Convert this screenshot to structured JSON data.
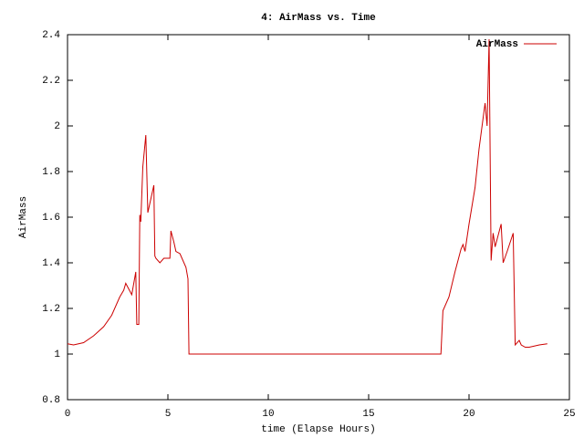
{
  "chart_data": {
    "type": "line",
    "title": "4: AirMass vs. Time",
    "x_label": "time (Elapse Hours)",
    "y_label": "AirMass",
    "x": [
      0,
      0.3,
      0.8,
      1.3,
      1.8,
      2.2,
      2.6,
      2.8,
      2.9,
      3.2,
      3.4,
      3.45,
      3.55,
      3.6,
      3.65,
      3.75,
      3.9,
      4.0,
      4.1,
      4.3,
      4.35,
      4.4,
      4.6,
      4.8,
      5.1,
      5.15,
      5.3,
      5.4,
      5.6,
      5.9,
      6.0,
      6.05,
      18.6,
      18.7,
      19.0,
      19.3,
      19.6,
      19.7,
      19.8,
      20.0,
      20.3,
      20.5,
      20.8,
      20.9,
      21.0,
      21.1,
      21.2,
      21.3,
      21.6,
      21.7,
      21.9,
      22.2,
      22.3,
      22.5,
      22.6,
      22.8,
      23.0,
      23.5,
      23.9
    ],
    "series": [
      {
        "name": "AirMass",
        "color": "#cc0000",
        "values": [
          1.045,
          1.04,
          1.05,
          1.08,
          1.12,
          1.17,
          1.25,
          1.28,
          1.31,
          1.26,
          1.36,
          1.13,
          1.13,
          1.61,
          1.58,
          1.82,
          1.96,
          1.62,
          1.66,
          1.74,
          1.43,
          1.42,
          1.4,
          1.42,
          1.42,
          1.54,
          1.49,
          1.45,
          1.44,
          1.38,
          1.33,
          1.0,
          1.0,
          1.19,
          1.25,
          1.36,
          1.46,
          1.48,
          1.45,
          1.57,
          1.73,
          1.9,
          2.1,
          2.0,
          2.38,
          1.41,
          1.53,
          1.47,
          1.57,
          1.4,
          1.45,
          1.53,
          1.04,
          1.06,
          1.04,
          1.03,
          1.03,
          1.04,
          1.045
        ]
      }
    ],
    "xlim": [
      0,
      25
    ],
    "xticks": [
      0,
      5,
      10,
      15,
      20,
      25
    ],
    "ylim": [
      0.8,
      2.4
    ],
    "yticks": [
      0.8,
      1,
      1.2,
      1.4,
      1.6,
      1.8,
      2,
      2.2,
      2.4
    ],
    "legend": "top-right"
  }
}
